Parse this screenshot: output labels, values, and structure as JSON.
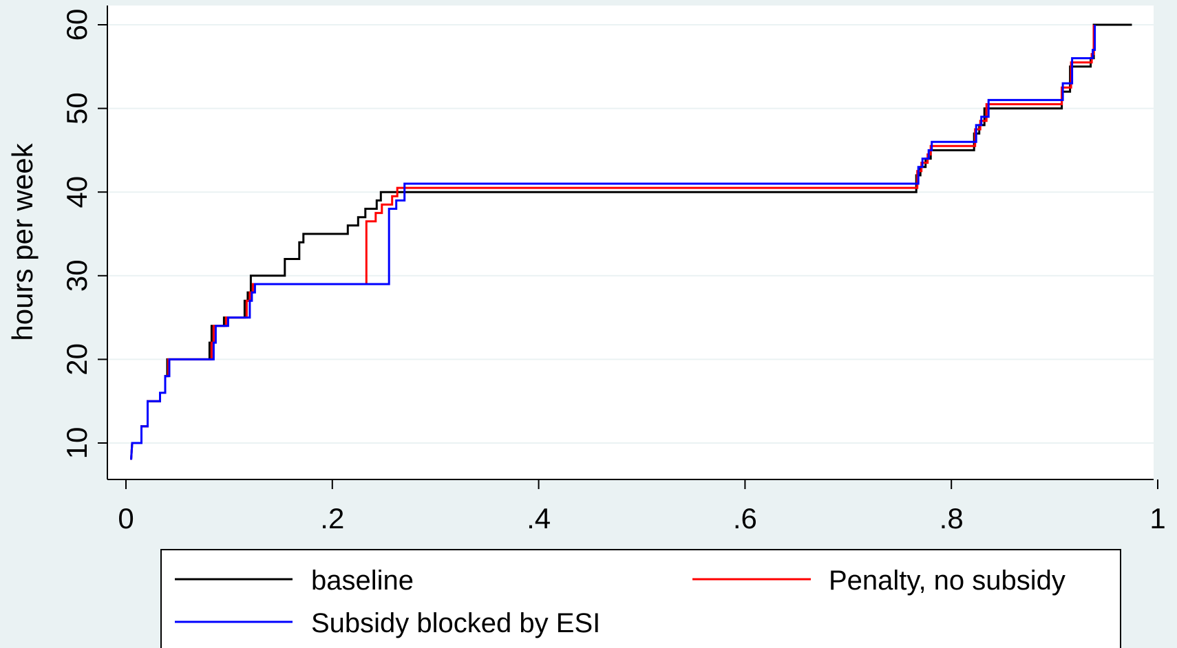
{
  "chart_data": {
    "type": "line",
    "step": true,
    "xlabel": "",
    "ylabel": "hours per week",
    "xlim": [
      0,
      1
    ],
    "ylim": [
      8,
      62
    ],
    "x_ticks": [
      0,
      0.2,
      0.4,
      0.6,
      0.8,
      1
    ],
    "x_tick_labels": [
      "0",
      ".2",
      ".4",
      ".6",
      ".8",
      "1"
    ],
    "y_ticks": [
      10,
      20,
      30,
      40,
      50,
      60
    ],
    "y_tick_labels": [
      "10",
      "20",
      "30",
      "40",
      "50",
      "60"
    ],
    "grid": "horizontal",
    "legend_position": "bottom",
    "series": [
      {
        "name": "baseline",
        "color": "#000000",
        "points": [
          [
            0.005,
            8
          ],
          [
            0.006,
            10
          ],
          [
            0.015,
            10
          ],
          [
            0.015,
            12
          ],
          [
            0.021,
            12
          ],
          [
            0.021,
            15
          ],
          [
            0.033,
            15
          ],
          [
            0.033,
            16
          ],
          [
            0.038,
            16
          ],
          [
            0.038,
            18
          ],
          [
            0.04,
            18
          ],
          [
            0.04,
            20
          ],
          [
            0.081,
            20
          ],
          [
            0.081,
            22
          ],
          [
            0.083,
            22
          ],
          [
            0.083,
            24
          ],
          [
            0.095,
            24
          ],
          [
            0.095,
            25
          ],
          [
            0.115,
            25
          ],
          [
            0.115,
            27
          ],
          [
            0.118,
            27
          ],
          [
            0.118,
            28
          ],
          [
            0.121,
            28
          ],
          [
            0.121,
            30
          ],
          [
            0.154,
            30
          ],
          [
            0.154,
            32
          ],
          [
            0.168,
            32
          ],
          [
            0.168,
            34
          ],
          [
            0.172,
            34
          ],
          [
            0.172,
            35
          ],
          [
            0.215,
            35
          ],
          [
            0.215,
            36
          ],
          [
            0.225,
            36
          ],
          [
            0.225,
            37
          ],
          [
            0.232,
            37
          ],
          [
            0.232,
            38
          ],
          [
            0.243,
            38
          ],
          [
            0.243,
            39
          ],
          [
            0.247,
            39
          ],
          [
            0.247,
            40
          ],
          [
            0.766,
            40
          ],
          [
            0.766,
            42
          ],
          [
            0.77,
            42
          ],
          [
            0.77,
            43
          ],
          [
            0.775,
            43
          ],
          [
            0.775,
            44
          ],
          [
            0.78,
            44
          ],
          [
            0.78,
            45
          ],
          [
            0.822,
            45
          ],
          [
            0.822,
            47
          ],
          [
            0.827,
            47
          ],
          [
            0.827,
            48
          ],
          [
            0.832,
            48
          ],
          [
            0.832,
            50
          ],
          [
            0.907,
            50
          ],
          [
            0.907,
            52
          ],
          [
            0.915,
            52
          ],
          [
            0.915,
            55
          ],
          [
            0.935,
            55
          ],
          [
            0.935,
            56
          ],
          [
            0.938,
            56
          ],
          [
            0.938,
            60
          ],
          [
            0.975,
            60
          ]
        ]
      },
      {
        "name": "Penalty, no subsidy",
        "color": "#ff0000",
        "points": [
          [
            0.005,
            8
          ],
          [
            0.006,
            10
          ],
          [
            0.015,
            10
          ],
          [
            0.015,
            12
          ],
          [
            0.021,
            12
          ],
          [
            0.021,
            15
          ],
          [
            0.033,
            15
          ],
          [
            0.033,
            16
          ],
          [
            0.038,
            16
          ],
          [
            0.038,
            18
          ],
          [
            0.041,
            18
          ],
          [
            0.041,
            20
          ],
          [
            0.083,
            20
          ],
          [
            0.083,
            22
          ],
          [
            0.085,
            22
          ],
          [
            0.085,
            24
          ],
          [
            0.097,
            24
          ],
          [
            0.097,
            25
          ],
          [
            0.117,
            25
          ],
          [
            0.117,
            27
          ],
          [
            0.12,
            27
          ],
          [
            0.12,
            28
          ],
          [
            0.123,
            28
          ],
          [
            0.123,
            29
          ],
          [
            0.233,
            29
          ],
          [
            0.233,
            36.5
          ],
          [
            0.242,
            36.5
          ],
          [
            0.242,
            37.5
          ],
          [
            0.248,
            37.5
          ],
          [
            0.248,
            38.5
          ],
          [
            0.258,
            38.5
          ],
          [
            0.258,
            39.5
          ],
          [
            0.263,
            39.5
          ],
          [
            0.263,
            40.5
          ],
          [
            0.767,
            40.5
          ],
          [
            0.767,
            42.5
          ],
          [
            0.771,
            42.5
          ],
          [
            0.771,
            43.5
          ],
          [
            0.777,
            43.5
          ],
          [
            0.777,
            44.5
          ],
          [
            0.78,
            44.5
          ],
          [
            0.78,
            45.5
          ],
          [
            0.823,
            45.5
          ],
          [
            0.823,
            47.5
          ],
          [
            0.828,
            47.5
          ],
          [
            0.828,
            48.5
          ],
          [
            0.834,
            48.5
          ],
          [
            0.834,
            50.5
          ],
          [
            0.907,
            50.5
          ],
          [
            0.907,
            52.5
          ],
          [
            0.916,
            52.5
          ],
          [
            0.916,
            55.5
          ],
          [
            0.936,
            55.5
          ],
          [
            0.936,
            56.5
          ],
          [
            0.938,
            56.5
          ],
          [
            0.938,
            60
          ]
        ]
      },
      {
        "name": "Subsidy blocked by ESI",
        "color": "#0000ff",
        "points": [
          [
            0.005,
            8
          ],
          [
            0.006,
            10
          ],
          [
            0.015,
            10
          ],
          [
            0.015,
            12
          ],
          [
            0.021,
            12
          ],
          [
            0.021,
            15
          ],
          [
            0.033,
            15
          ],
          [
            0.033,
            16
          ],
          [
            0.038,
            16
          ],
          [
            0.038,
            18
          ],
          [
            0.042,
            18
          ],
          [
            0.042,
            20
          ],
          [
            0.085,
            20
          ],
          [
            0.085,
            22
          ],
          [
            0.087,
            22
          ],
          [
            0.087,
            24
          ],
          [
            0.099,
            24
          ],
          [
            0.099,
            25
          ],
          [
            0.12,
            25
          ],
          [
            0.12,
            27
          ],
          [
            0.122,
            27
          ],
          [
            0.122,
            28
          ],
          [
            0.125,
            28
          ],
          [
            0.125,
            29
          ],
          [
            0.255,
            29
          ],
          [
            0.255,
            38
          ],
          [
            0.262,
            38
          ],
          [
            0.262,
            39
          ],
          [
            0.27,
            39
          ],
          [
            0.27,
            41
          ],
          [
            0.768,
            41
          ],
          [
            0.768,
            43
          ],
          [
            0.772,
            43
          ],
          [
            0.772,
            44
          ],
          [
            0.778,
            44
          ],
          [
            0.778,
            45
          ],
          [
            0.781,
            45
          ],
          [
            0.781,
            46
          ],
          [
            0.824,
            46
          ],
          [
            0.824,
            48
          ],
          [
            0.829,
            48
          ],
          [
            0.829,
            49
          ],
          [
            0.836,
            49
          ],
          [
            0.836,
            51
          ],
          [
            0.908,
            51
          ],
          [
            0.908,
            53
          ],
          [
            0.917,
            53
          ],
          [
            0.917,
            56
          ],
          [
            0.937,
            56
          ],
          [
            0.937,
            57
          ],
          [
            0.939,
            57
          ],
          [
            0.939,
            60
          ]
        ]
      }
    ]
  },
  "legend": {
    "items": [
      "baseline",
      "Penalty, no subsidy",
      "Subsidy blocked by ESI"
    ]
  },
  "colors": {
    "background": "#eaf2f3",
    "plot_area": "#ffffff",
    "grid": "#eaf2f3"
  }
}
